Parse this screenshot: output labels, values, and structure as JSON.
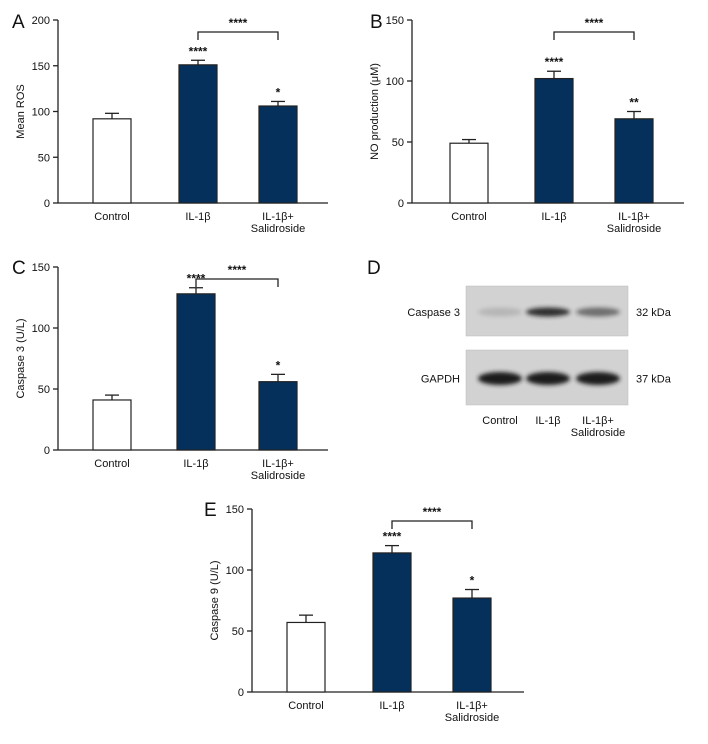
{
  "colors": {
    "bar_fill_filled": "#05305b",
    "bar_fill_open": "#ffffff",
    "stroke": "#222222",
    "blot_background": "#d2d2d2",
    "blot_band": "#1a1a1a"
  },
  "chart_data": [
    {
      "panel": "A",
      "type": "bar",
      "categories": [
        "Control",
        "IL-1β",
        "IL-1β+\nSalidroside"
      ],
      "values": [
        92,
        151,
        106
      ],
      "errors": [
        6,
        5,
        5
      ],
      "fills": [
        "open",
        "filled",
        "filled"
      ],
      "ylabel": "Mean ROS",
      "ylim": [
        0,
        200
      ],
      "yticks": [
        0,
        50,
        100,
        150,
        200
      ],
      "bar_stars": [
        "",
        "****",
        "*"
      ],
      "comparison": {
        "from": 1,
        "to": 2,
        "label": "****"
      }
    },
    {
      "panel": "B",
      "type": "bar",
      "categories": [
        "Control",
        "IL-1β",
        "IL-1β+\nSalidroside"
      ],
      "values": [
        49,
        102,
        69
      ],
      "errors": [
        3,
        6,
        6
      ],
      "fills": [
        "open",
        "filled",
        "filled"
      ],
      "ylabel": "NO production (μM)",
      "ylim": [
        0,
        150
      ],
      "yticks": [
        0,
        50,
        100,
        150
      ],
      "bar_stars": [
        "",
        "****",
        "**"
      ],
      "comparison": {
        "from": 1,
        "to": 2,
        "label": "****"
      }
    },
    {
      "panel": "C",
      "type": "bar",
      "categories": [
        "Control",
        "IL-1β",
        "IL-1β+\nSalidroside"
      ],
      "values": [
        41,
        128,
        56
      ],
      "errors": [
        4,
        5,
        6
      ],
      "fills": [
        "open",
        "filled",
        "filled"
      ],
      "ylabel": "Caspase 3 (U/L)",
      "ylim": [
        0,
        150
      ],
      "yticks": [
        0,
        50,
        100,
        150
      ],
      "bar_stars": [
        "",
        "****",
        "*"
      ],
      "comparison": {
        "from": 1,
        "to": 2,
        "label": "****"
      }
    },
    {
      "panel": "E",
      "type": "bar",
      "categories": [
        "Control",
        "IL-1β",
        "IL-1β+\nSalidroside"
      ],
      "values": [
        57,
        114,
        77
      ],
      "errors": [
        6,
        6,
        7
      ],
      "fills": [
        "open",
        "filled",
        "filled"
      ],
      "ylabel": "Caspase 9 (U/L)",
      "ylim": [
        0,
        150
      ],
      "yticks": [
        0,
        50,
        100,
        150
      ],
      "bar_stars": [
        "",
        "****",
        "*"
      ],
      "comparison": {
        "from": 1,
        "to": 2,
        "label": "****"
      }
    }
  ],
  "western_blot": {
    "panel": "D",
    "rows": [
      {
        "protein": "Caspase 3",
        "size": "32 kDa",
        "band_intensity": [
          0.15,
          0.9,
          0.55
        ]
      },
      {
        "protein": "GAPDH",
        "size": "37 kDa",
        "band_intensity": [
          1.0,
          1.0,
          1.0
        ]
      }
    ],
    "lanes": [
      "Control",
      "IL-1β",
      "IL-1β+\nSalidroside"
    ]
  }
}
